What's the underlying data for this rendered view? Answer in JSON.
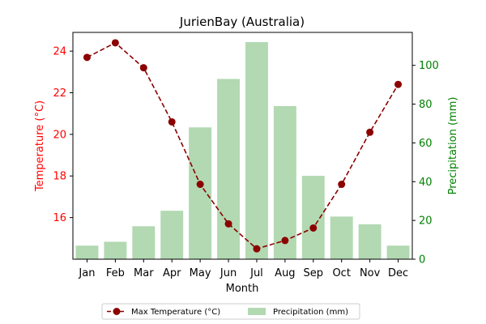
{
  "chart_data": {
    "type": "bar+line",
    "title": "JurienBay (Australia)",
    "xlabel": "Month",
    "ylabel_left": "Temperature (°C)",
    "ylabel_right": "Precipitation (mm)",
    "categories": [
      "Jan",
      "Feb",
      "Mar",
      "Apr",
      "May",
      "Jun",
      "Jul",
      "Aug",
      "Sep",
      "Oct",
      "Nov",
      "Dec"
    ],
    "temperature": {
      "name": "Max Temperature (°C)",
      "values": [
        23.7,
        24.4,
        23.2,
        20.6,
        17.6,
        15.7,
        14.5,
        14.9,
        15.5,
        17.6,
        20.1,
        22.4
      ],
      "ylim": [
        14.0,
        24.9
      ],
      "ticks": [
        16,
        18,
        20,
        22,
        24
      ],
      "color": "#8b0000"
    },
    "precipitation": {
      "name": "Precipitation (mm)",
      "values": [
        7,
        9,
        17,
        25,
        68,
        93,
        112,
        79,
        43,
        22,
        18,
        7
      ],
      "ylim": [
        0,
        117
      ],
      "ticks": [
        0,
        20,
        40,
        60,
        80,
        100
      ],
      "color": "#b2d9b2"
    },
    "colors": {
      "left_axis": "#ff0000",
      "right_axis": "#008000"
    },
    "grid": false,
    "legend_position": "bottom-center"
  }
}
